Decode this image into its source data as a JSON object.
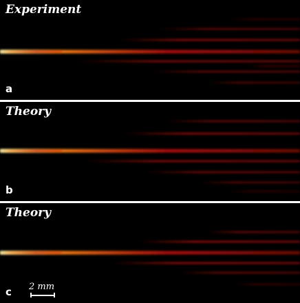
{
  "panels": [
    {
      "title": "Experiment",
      "letter": "a"
    },
    {
      "title": "Theory",
      "letter": "b"
    },
    {
      "title": "Theory",
      "letter": "c"
    }
  ],
  "scale_bar": {
    "label": "2 mm"
  },
  "colors": {
    "background": "#000000",
    "beam_core": "#fff1a8",
    "beam_mid": "#ff8a1c",
    "beam_edge": "#c0120a",
    "separator": "#ffffff"
  }
}
